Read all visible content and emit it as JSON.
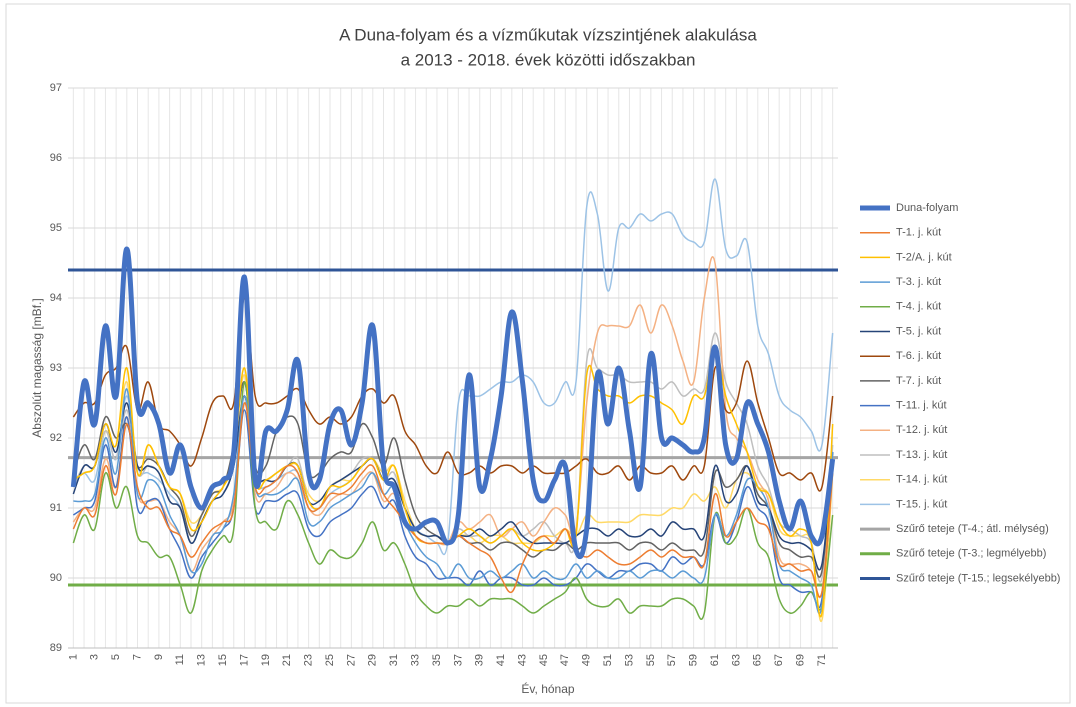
{
  "chart_data": {
    "type": "line",
    "title": [
      "A Duna-folyam és a vízműkutak vízszintjének alakulása",
      "a 2013 - 2018. évek közötti időszakban"
    ],
    "x_label": "Év, hónap",
    "y_label": "Abszolút magasság [mBf.]",
    "x": [
      1,
      2,
      3,
      4,
      5,
      6,
      7,
      8,
      9,
      10,
      11,
      12,
      13,
      14,
      15,
      16,
      17,
      18,
      19,
      20,
      21,
      22,
      23,
      24,
      25,
      26,
      27,
      28,
      29,
      30,
      31,
      32,
      33,
      34,
      35,
      36,
      37,
      38,
      39,
      40,
      41,
      42,
      43,
      44,
      45,
      46,
      47,
      48,
      49,
      50,
      51,
      52,
      53,
      54,
      55,
      56,
      57,
      58,
      59,
      60,
      61,
      62,
      63,
      64,
      65,
      66,
      67,
      68,
      69,
      70,
      71,
      72
    ],
    "xlim": [
      0.5,
      72.5
    ],
    "xticks": [
      1,
      3,
      5,
      7,
      9,
      11,
      13,
      15,
      17,
      19,
      21,
      23,
      25,
      27,
      29,
      31,
      33,
      35,
      37,
      39,
      41,
      43,
      45,
      47,
      49,
      51,
      53,
      55,
      57,
      59,
      61,
      63,
      65,
      67,
      69,
      71
    ],
    "ylim": [
      89,
      97
    ],
    "yticks": [
      89,
      90,
      91,
      92,
      93,
      94,
      95,
      96,
      97
    ],
    "grid": true,
    "legend": "right",
    "series": [
      {
        "name": "Duna-folyam",
        "color": "#4472c4",
        "width": 5,
        "values": [
          91.3,
          92.8,
          92.2,
          93.6,
          92.6,
          94.7,
          92.5,
          92.5,
          92.2,
          91.5,
          91.9,
          91.3,
          91.0,
          91.3,
          91.4,
          91.8,
          94.3,
          91.4,
          92.1,
          92.1,
          92.4,
          93.1,
          91.5,
          91.4,
          92.2,
          92.4,
          91.9,
          92.5,
          93.6,
          91.6,
          91.3,
          90.8,
          90.7,
          90.8,
          90.8,
          90.5,
          90.9,
          92.9,
          91.3,
          91.7,
          92.6,
          93.8,
          92.8,
          91.4,
          91.1,
          91.4,
          91.6,
          90.4,
          90.7,
          92.9,
          92.2,
          93.0,
          92.1,
          91.3,
          93.2,
          92.0,
          92.0,
          91.9,
          91.8,
          92.0,
          93.3,
          91.9,
          91.7,
          92.5,
          92.2,
          91.8,
          91.1,
          90.7,
          91.1,
          90.6,
          90.6,
          91.7
        ]
      },
      {
        "name": "T-1. j. kút",
        "color": "#ed7d31",
        "width": 1.5,
        "values": [
          90.7,
          91.0,
          90.9,
          91.6,
          91.2,
          92.2,
          91.3,
          91.0,
          91.0,
          90.7,
          90.6,
          90.3,
          90.5,
          90.7,
          90.8,
          91.0,
          92.5,
          91.3,
          91.3,
          91.4,
          91.6,
          91.5,
          91.0,
          91.0,
          91.2,
          91.2,
          91.3,
          91.5,
          91.6,
          91.2,
          91.0,
          90.8,
          90.6,
          90.5,
          90.5,
          90.5,
          90.6,
          90.5,
          90.4,
          90.3,
          90.0,
          89.8,
          90.2,
          90.5,
          90.6,
          90.5,
          90.7,
          90.4,
          90.3,
          90.4,
          90.3,
          90.2,
          90.2,
          90.3,
          90.4,
          90.3,
          90.4,
          90.3,
          90.3,
          90.2,
          91.2,
          90.6,
          90.8,
          91.0,
          90.8,
          90.7,
          90.2,
          90.2,
          90.1,
          90.1,
          89.8,
          91.5
        ]
      },
      {
        "name": "T-2/A. j. kút",
        "color": "#ffc000",
        "width": 1.5,
        "values": [
          91.4,
          91.5,
          91.6,
          92.2,
          91.9,
          93.0,
          91.5,
          91.9,
          91.6,
          91.3,
          91.2,
          90.7,
          90.8,
          91.1,
          91.3,
          91.7,
          93.0,
          91.4,
          91.4,
          91.5,
          91.6,
          91.6,
          91.1,
          91.0,
          91.3,
          91.3,
          91.4,
          91.6,
          91.7,
          91.4,
          91.6,
          91.0,
          90.6,
          90.5,
          90.5,
          90.5,
          90.6,
          90.7,
          90.6,
          90.5,
          90.6,
          90.7,
          90.5,
          90.4,
          90.4,
          90.5,
          90.7,
          90.6,
          92.9,
          92.7,
          92.6,
          92.6,
          92.5,
          92.6,
          92.6,
          92.5,
          92.4,
          92.2,
          92.6,
          92.6,
          93.3,
          92.6,
          92.2,
          91.8,
          91.3,
          91.2,
          90.8,
          90.6,
          90.7,
          90.5,
          89.5,
          92.2
        ]
      },
      {
        "name": "T-3. j. kút",
        "color": "#5b9bd5",
        "width": 1.5,
        "values": [
          91.1,
          91.1,
          91.2,
          92.0,
          91.5,
          92.7,
          91.2,
          91.4,
          91.3,
          90.9,
          90.6,
          90.1,
          90.2,
          90.6,
          90.7,
          91.2,
          92.6,
          91.3,
          91.2,
          91.2,
          91.3,
          91.4,
          90.8,
          90.8,
          91.0,
          91.1,
          91.2,
          91.3,
          91.5,
          91.2,
          91.3,
          90.8,
          90.5,
          90.3,
          90.2,
          90.0,
          90.2,
          90.0,
          90.0,
          90.1,
          90.0,
          90.1,
          90.2,
          90.0,
          90.1,
          90.0,
          90.0,
          90.2,
          90.0,
          90.1,
          90.0,
          90.0,
          90.1,
          90.0,
          90.1,
          90.1,
          90.0,
          90.1,
          90.0,
          90.0,
          90.9,
          90.6,
          90.9,
          91.4,
          91.3,
          91.0,
          90.2,
          90.1,
          90.0,
          89.9,
          89.6,
          91.8
        ]
      },
      {
        "name": "T-4. j. kút",
        "color": "#70ad47",
        "width": 1.5,
        "values": [
          90.5,
          90.9,
          90.7,
          91.5,
          91.0,
          91.3,
          90.6,
          90.5,
          90.3,
          90.3,
          89.9,
          89.5,
          90.1,
          90.4,
          90.6,
          90.7,
          92.8,
          91.0,
          90.8,
          90.7,
          91.1,
          90.9,
          90.5,
          90.2,
          90.4,
          90.3,
          90.3,
          90.5,
          90.8,
          90.4,
          90.5,
          90.2,
          89.8,
          89.6,
          89.5,
          89.6,
          89.6,
          89.7,
          89.6,
          89.7,
          89.7,
          89.7,
          89.6,
          89.5,
          89.6,
          89.7,
          89.8,
          90.0,
          89.7,
          89.6,
          89.6,
          89.7,
          89.5,
          89.6,
          89.6,
          89.6,
          89.7,
          89.7,
          89.6,
          89.5,
          90.9,
          90.5,
          90.6,
          91.0,
          90.5,
          90.3,
          89.7,
          89.5,
          89.6,
          89.8,
          89.6,
          90.9
        ]
      },
      {
        "name": "T-5. j. kút",
        "color": "#264478",
        "width": 1.5,
        "values": [
          91.2,
          91.6,
          91.6,
          92.2,
          91.8,
          92.5,
          91.6,
          91.6,
          91.5,
          91.1,
          91.0,
          90.5,
          90.8,
          91.1,
          91.2,
          91.6,
          92.6,
          91.5,
          91.4,
          91.4,
          91.6,
          91.6,
          91.1,
          91.1,
          91.3,
          91.4,
          91.5,
          91.6,
          91.7,
          91.4,
          91.4,
          91.0,
          90.7,
          90.6,
          90.6,
          90.5,
          90.6,
          90.6,
          90.7,
          90.6,
          90.7,
          90.8,
          90.6,
          90.5,
          90.5,
          90.5,
          90.5,
          90.6,
          90.7,
          90.7,
          90.6,
          90.7,
          90.6,
          90.6,
          90.7,
          90.6,
          90.8,
          90.7,
          90.7,
          90.6,
          91.6,
          91.1,
          91.2,
          91.6,
          91.1,
          91.0,
          90.6,
          90.5,
          90.5,
          90.4,
          90.2,
          91.8
        ]
      },
      {
        "name": "T-6. j. kút",
        "color": "#9e480e",
        "width": 1.5,
        "values": [
          92.3,
          92.5,
          92.5,
          92.9,
          93.0,
          93.3,
          92.4,
          92.8,
          92.2,
          92.1,
          91.9,
          91.6,
          92.0,
          92.5,
          92.6,
          92.5,
          94.0,
          92.6,
          92.5,
          92.5,
          92.6,
          92.7,
          92.4,
          92.2,
          92.3,
          92.2,
          92.3,
          92.6,
          92.7,
          92.5,
          92.6,
          92.1,
          91.9,
          91.6,
          91.5,
          91.8,
          91.5,
          91.5,
          91.6,
          91.5,
          91.6,
          91.6,
          91.5,
          91.6,
          91.5,
          91.5,
          91.5,
          91.6,
          91.7,
          91.5,
          91.5,
          91.6,
          91.4,
          91.6,
          91.5,
          91.5,
          91.6,
          91.4,
          91.6,
          91.6,
          93.0,
          92.4,
          92.5,
          93.1,
          92.5,
          92.0,
          91.5,
          91.5,
          91.4,
          91.5,
          91.3,
          92.6
        ]
      },
      {
        "name": "T-7. j. kút",
        "color": "#636363",
        "width": 1.5,
        "values": [
          91.5,
          91.9,
          91.7,
          92.3,
          92.0,
          92.2,
          91.6,
          91.7,
          91.6,
          91.3,
          91.1,
          90.6,
          90.9,
          91.2,
          91.3,
          91.9,
          92.8,
          91.6,
          91.6,
          92.1,
          92.3,
          92.2,
          91.5,
          91.5,
          91.7,
          91.8,
          91.8,
          92.2,
          92.0,
          91.6,
          92.0,
          91.4,
          90.9,
          90.7,
          90.6,
          90.5,
          90.6,
          90.5,
          90.5,
          90.4,
          90.5,
          90.5,
          90.4,
          90.3,
          90.4,
          90.4,
          90.5,
          90.4,
          90.5,
          90.5,
          90.5,
          90.5,
          90.4,
          90.5,
          90.5,
          90.4,
          90.5,
          90.4,
          90.4,
          90.4,
          91.5,
          91.3,
          91.4,
          91.6,
          91.2,
          91.0,
          90.5,
          90.4,
          90.3,
          90.3,
          90.1,
          91.8
        ]
      },
      {
        "name": "T-11. j. kút",
        "color": "#4472c4",
        "width": 1.5,
        "values": [
          90.9,
          91.0,
          91.1,
          91.9,
          91.3,
          92.3,
          91.0,
          91.1,
          91.1,
          90.7,
          90.4,
          90.0,
          90.3,
          90.5,
          90.7,
          91.0,
          92.4,
          91.0,
          91.1,
          91.1,
          91.2,
          91.2,
          90.7,
          90.6,
          90.8,
          90.9,
          91.0,
          91.2,
          91.3,
          91.0,
          91.1,
          90.6,
          90.3,
          90.2,
          90.0,
          90.0,
          90.0,
          89.9,
          90.1,
          89.9,
          90.0,
          90.0,
          89.9,
          89.9,
          90.0,
          89.9,
          89.9,
          90.0,
          90.2,
          90.1,
          90.0,
          90.1,
          90.1,
          90.2,
          90.2,
          90.1,
          90.3,
          90.2,
          90.3,
          90.2,
          90.9,
          90.5,
          90.8,
          91.3,
          91.0,
          90.8,
          90.0,
          89.9,
          89.8,
          89.8,
          89.7,
          91.6
        ]
      },
      {
        "name": "T-12. j. kút",
        "color": "#f4b183",
        "width": 1.5,
        "values": [
          90.8,
          91.0,
          91.0,
          91.7,
          91.3,
          92.3,
          91.2,
          91.1,
          91.1,
          90.8,
          90.6,
          90.1,
          90.4,
          90.6,
          90.8,
          91.1,
          92.6,
          91.2,
          91.2,
          91.3,
          91.5,
          91.4,
          91.0,
          90.9,
          91.1,
          91.2,
          91.2,
          91.4,
          91.5,
          91.1,
          91.2,
          90.8,
          90.6,
          90.5,
          90.5,
          90.5,
          90.8,
          90.7,
          90.8,
          90.9,
          90.6,
          90.7,
          90.8,
          90.6,
          90.8,
          91.0,
          90.9,
          90.7,
          92.5,
          93.5,
          93.6,
          93.6,
          93.6,
          93.9,
          93.5,
          93.9,
          93.6,
          93.1,
          92.8,
          94.0,
          94.5,
          92.4,
          92.0,
          91.8,
          91.4,
          91.1,
          90.3,
          90.2,
          90.2,
          90.1,
          89.8,
          91.6
        ]
      },
      {
        "name": "T-13. j. kút",
        "color": "#bfbfbf",
        "width": 1.5,
        "values": [
          91.3,
          91.6,
          91.6,
          92.1,
          91.7,
          92.4,
          91.5,
          91.6,
          91.5,
          91.1,
          91.0,
          90.5,
          90.8,
          91.1,
          91.2,
          91.6,
          92.6,
          91.5,
          91.4,
          91.5,
          91.6,
          91.7,
          91.1,
          91.0,
          91.3,
          91.4,
          91.5,
          91.7,
          91.7,
          91.4,
          91.5,
          91.0,
          90.7,
          90.6,
          90.6,
          90.5,
          90.7,
          90.6,
          90.6,
          90.5,
          90.6,
          90.7,
          90.6,
          90.7,
          90.8,
          90.6,
          90.5,
          90.6,
          93.1,
          93.0,
          92.9,
          92.9,
          92.8,
          92.8,
          92.8,
          92.7,
          92.8,
          92.6,
          92.7,
          92.7,
          93.5,
          92.8,
          92.5,
          92.2,
          91.6,
          91.3,
          90.8,
          90.7,
          90.6,
          90.5,
          90.0,
          91.9
        ]
      },
      {
        "name": "T-14. j. kút",
        "color": "#ffd966",
        "width": 1.5,
        "values": [
          91.4,
          91.5,
          91.6,
          92.1,
          91.9,
          92.8,
          91.5,
          91.9,
          91.6,
          91.3,
          91.2,
          90.8,
          90.9,
          91.2,
          91.3,
          91.7,
          92.9,
          91.4,
          91.4,
          91.5,
          91.6,
          91.6,
          91.2,
          91.1,
          91.3,
          91.4,
          91.4,
          91.6,
          91.7,
          91.5,
          91.6,
          91.1,
          90.7,
          90.6,
          90.6,
          90.5,
          90.6,
          90.6,
          90.5,
          90.6,
          90.6,
          90.5,
          90.5,
          90.5,
          90.6,
          90.6,
          90.7,
          90.6,
          90.9,
          90.8,
          90.8,
          90.8,
          90.8,
          90.9,
          90.9,
          90.9,
          91.0,
          91.0,
          91.2,
          91.1,
          91.3,
          91.0,
          91.4,
          91.5,
          91.3,
          91.2,
          90.7,
          90.6,
          90.6,
          90.5,
          89.4,
          91.5
        ]
      },
      {
        "name": "T-15. j. kút",
        "color": "#9dc3e6",
        "width": 1.5,
        "values": [
          91.4,
          91.5,
          91.4,
          92.1,
          91.7,
          92.6,
          91.6,
          91.5,
          91.4,
          91.2,
          91.0,
          90.5,
          90.8,
          91.1,
          91.2,
          91.6,
          92.4,
          91.4,
          91.3,
          91.4,
          91.5,
          91.5,
          91.0,
          91.0,
          91.2,
          91.3,
          91.4,
          91.6,
          91.7,
          91.4,
          91.4,
          91.0,
          90.7,
          90.6,
          90.5,
          90.5,
          92.5,
          92.6,
          92.6,
          92.7,
          92.8,
          92.8,
          92.9,
          92.8,
          92.5,
          92.5,
          92.8,
          92.8,
          95.3,
          95.2,
          94.1,
          95.0,
          95.0,
          95.2,
          95.1,
          95.2,
          95.2,
          94.9,
          94.8,
          94.8,
          95.7,
          94.7,
          94.6,
          94.8,
          93.6,
          93.2,
          92.6,
          92.4,
          92.3,
          92.1,
          91.9,
          93.5
        ]
      }
    ],
    "reference_lines": [
      {
        "name": "Szűrő teteje (T-4.; átl. mélység)",
        "color": "#a5a5a5",
        "value": 91.72
      },
      {
        "name": "Szűrő teteje (T-3.; legmélyebb)",
        "color": "#70ad47",
        "value": 89.9
      },
      {
        "name": "Szűrő teteje (T-15.; legsekélyebb)",
        "color": "#2f5597",
        "value": 94.4
      }
    ]
  }
}
